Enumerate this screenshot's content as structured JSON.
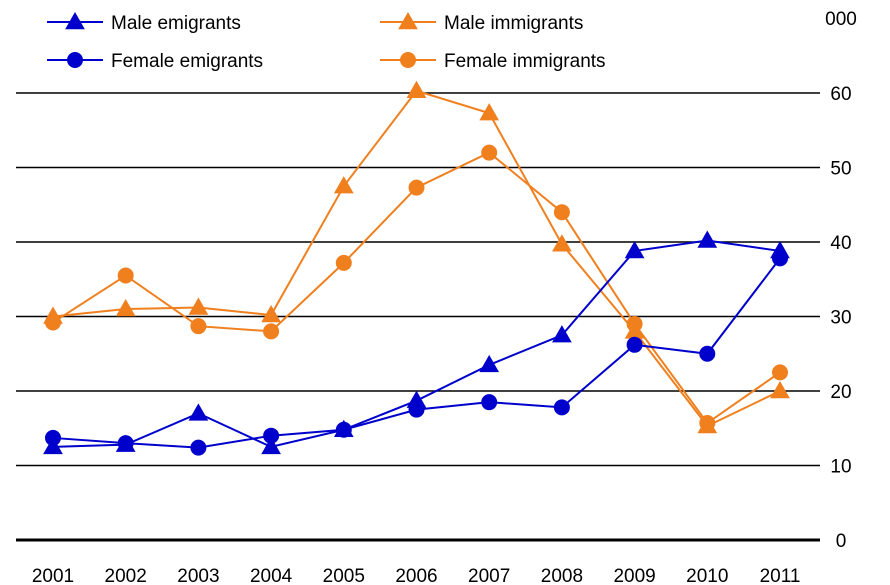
{
  "chart_data": {
    "type": "line",
    "unit_label": "000",
    "categories": [
      "2001",
      "2002",
      "2003",
      "2004",
      "2005",
      "2006",
      "2007",
      "2008",
      "2009",
      "2010",
      "2011"
    ],
    "ylim": [
      0,
      60
    ],
    "yticks": [
      "0",
      "10",
      "20",
      "30",
      "40",
      "50",
      "60"
    ],
    "grid": true,
    "legend_position": "top",
    "series": [
      {
        "name": "Male emigrants",
        "color": "#0000CC",
        "marker": "triangle",
        "values": [
          12.5,
          12.8,
          17.0,
          12.5,
          14.8,
          18.7,
          23.5,
          27.5,
          38.8,
          40.2,
          38.8
        ]
      },
      {
        "name": "Male immigrants",
        "color": "#F07F1E",
        "marker": "triangle",
        "values": [
          30.0,
          31.0,
          31.2,
          30.2,
          47.5,
          60.3,
          57.3,
          39.7,
          28.0,
          15.3,
          20.0
        ]
      },
      {
        "name": "Female emigrants",
        "color": "#0000CC",
        "marker": "circle",
        "values": [
          13.7,
          13.0,
          12.4,
          14.0,
          14.8,
          17.5,
          18.5,
          17.8,
          26.2,
          25.0,
          37.8
        ]
      },
      {
        "name": "Female immigrants",
        "color": "#F07F1E",
        "marker": "circle",
        "values": [
          29.2,
          35.5,
          28.7,
          28.0,
          37.2,
          47.3,
          52.0,
          44.0,
          29.0,
          15.7,
          22.5
        ]
      }
    ]
  }
}
